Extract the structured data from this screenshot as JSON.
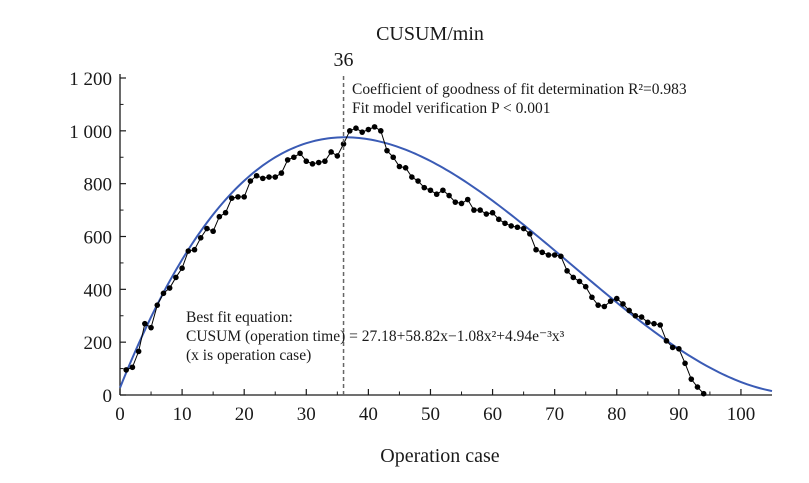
{
  "chart_data": {
    "type": "scatter",
    "title": "CUSUM/min",
    "xlabel": "Operation case",
    "ylabel": "",
    "xlim": [
      0,
      105
    ],
    "ylim": [
      0,
      1200
    ],
    "x_ticks": [
      0,
      10,
      20,
      30,
      40,
      50,
      60,
      70,
      80,
      90,
      100
    ],
    "y_ticks": [
      0,
      200,
      400,
      600,
      800,
      1000,
      1200
    ],
    "x_tick_labels": [
      "0",
      "10",
      "20",
      "30",
      "40",
      "50",
      "60",
      "70",
      "80",
      "90",
      "100"
    ],
    "y_tick_labels": [
      "0",
      "200",
      "400",
      "600",
      "800",
      "1 000",
      "1 200"
    ],
    "grid": false,
    "cutoff": {
      "x": 36,
      "label": "36"
    },
    "annotations": {
      "r2_line": "Coefficient of goodness of fit determination R²=0.983",
      "p_line": "Fit model verification P < 0.001",
      "eq_line1": "Best fit equation:",
      "eq_line2": "CUSUM (operation time) = 27.18+58.82x−1.08x²+4.94e⁻³x³",
      "eq_line3": "(x is operation case)"
    },
    "colors": {
      "points": "#000000",
      "fit_curve": "#3a5bb5",
      "axis": "#1a1a1a"
    },
    "series": [
      {
        "kind": "observed",
        "x": [
          1,
          2,
          3,
          4,
          5,
          6,
          7,
          8,
          9,
          10,
          11,
          12,
          13,
          14,
          15,
          16,
          17,
          18,
          19,
          20,
          21,
          22,
          23,
          24,
          25,
          26,
          27,
          28,
          29,
          30,
          31,
          32,
          33,
          34,
          35,
          36,
          37,
          38,
          39,
          40,
          41,
          42,
          43,
          44,
          45,
          46,
          47,
          48,
          49,
          50,
          51,
          52,
          53,
          54,
          55,
          56,
          57,
          58,
          59,
          60,
          61,
          62,
          63,
          64,
          65,
          66,
          67,
          68,
          69,
          70,
          71,
          72,
          73,
          74,
          75,
          76,
          77,
          78,
          79,
          80,
          81,
          82,
          83,
          84,
          85,
          86,
          87,
          88,
          89,
          90,
          91,
          92,
          93,
          94
        ],
        "y": [
          95,
          105,
          165,
          270,
          255,
          340,
          385,
          405,
          445,
          480,
          545,
          550,
          595,
          630,
          620,
          675,
          690,
          745,
          750,
          750,
          810,
          830,
          820,
          825,
          825,
          840,
          890,
          900,
          915,
          885,
          875,
          880,
          885,
          920,
          905,
          950,
          1000,
          1010,
          995,
          1005,
          1015,
          1000,
          925,
          900,
          865,
          860,
          825,
          810,
          785,
          775,
          760,
          775,
          755,
          730,
          725,
          740,
          700,
          700,
          685,
          690,
          665,
          650,
          640,
          635,
          630,
          610,
          550,
          540,
          530,
          530,
          525,
          470,
          445,
          430,
          410,
          370,
          340,
          335,
          355,
          365,
          345,
          320,
          300,
          295,
          275,
          270,
          265,
          205,
          180,
          175,
          120,
          60,
          30,
          5
        ]
      },
      {
        "kind": "fit",
        "equation": "27.18+58.82x−1.08x²+4.94e⁻³x³"
      }
    ]
  }
}
